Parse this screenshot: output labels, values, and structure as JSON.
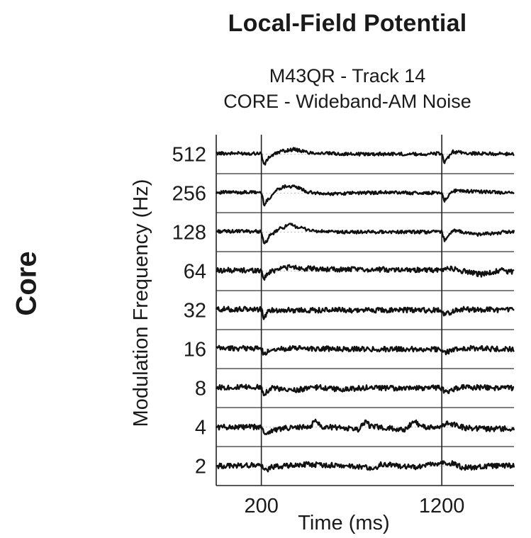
{
  "figure": {
    "title": "Local-Field Potential",
    "subtitle_line1": "M43QR - Track 14",
    "subtitle_line2": "CORE - Wideband-AM Noise",
    "side_label": "Core"
  },
  "chart_data": {
    "type": "line",
    "title": "Local-Field Potential",
    "subtitle": [
      "M43QR - Track 14",
      "CORE - Wideband-AM Noise"
    ],
    "xlabel": "Time (ms)",
    "ylabel": "Modulation Frequency (Hz)",
    "x_ticks": [
      200,
      1200
    ],
    "xlim": [
      -50,
      1600
    ],
    "stimulus_markers_ms": [
      200,
      1200
    ],
    "categories": [
      "512",
      "256",
      "128",
      "64",
      "32",
      "16",
      "8",
      "4",
      "2"
    ],
    "series": [
      {
        "name": "512",
        "points": [
          [
            -50,
            0.05
          ],
          [
            150,
            0.05
          ],
          [
            200,
            0.05
          ],
          [
            215,
            -0.7
          ],
          [
            240,
            -0.2
          ],
          [
            300,
            0.15
          ],
          [
            380,
            0.3
          ],
          [
            460,
            0.1
          ],
          [
            550,
            0.05
          ],
          [
            700,
            0.0
          ],
          [
            900,
            0.02
          ],
          [
            1100,
            0.0
          ],
          [
            1200,
            0.05
          ],
          [
            1215,
            -0.55
          ],
          [
            1260,
            0.15
          ],
          [
            1350,
            0.05
          ],
          [
            1600,
            0.0
          ]
        ]
      },
      {
        "name": "256",
        "points": [
          [
            -50,
            0.05
          ],
          [
            150,
            0.05
          ],
          [
            200,
            0.05
          ],
          [
            215,
            -0.7
          ],
          [
            240,
            -0.35
          ],
          [
            290,
            0.25
          ],
          [
            340,
            0.45
          ],
          [
            400,
            0.35
          ],
          [
            460,
            0.05
          ],
          [
            550,
            -0.05
          ],
          [
            700,
            0.0
          ],
          [
            900,
            0.05
          ],
          [
            1100,
            0.0
          ],
          [
            1200,
            0.05
          ],
          [
            1215,
            -0.45
          ],
          [
            1260,
            0.15
          ],
          [
            1400,
            0.1
          ],
          [
            1600,
            0.0
          ]
        ]
      },
      {
        "name": "128",
        "points": [
          [
            -50,
            0.05
          ],
          [
            150,
            0.05
          ],
          [
            200,
            0.05
          ],
          [
            215,
            -0.8
          ],
          [
            245,
            -0.25
          ],
          [
            300,
            0.2
          ],
          [
            360,
            0.45
          ],
          [
            420,
            0.25
          ],
          [
            500,
            0.05
          ],
          [
            650,
            0.0
          ],
          [
            900,
            0.02
          ],
          [
            1100,
            0.0
          ],
          [
            1200,
            0.05
          ],
          [
            1215,
            -0.5
          ],
          [
            1260,
            0.1
          ],
          [
            1400,
            -0.15
          ],
          [
            1600,
            0.05
          ]
        ]
      },
      {
        "name": "64",
        "points": [
          [
            -50,
            0.05
          ],
          [
            150,
            0.05
          ],
          [
            200,
            0.05
          ],
          [
            215,
            -0.45
          ],
          [
            240,
            -0.1
          ],
          [
            300,
            0.2
          ],
          [
            360,
            0.25
          ],
          [
            450,
            0.15
          ],
          [
            600,
            0.1
          ],
          [
            800,
            0.1
          ],
          [
            1000,
            0.1
          ],
          [
            1150,
            0.05
          ],
          [
            1200,
            0.05
          ],
          [
            1230,
            0.2
          ],
          [
            1320,
            0.0
          ],
          [
            1420,
            -0.2
          ],
          [
            1520,
            0.05
          ],
          [
            1600,
            -0.05
          ]
        ]
      },
      {
        "name": "32",
        "points": [
          [
            -50,
            0.05
          ],
          [
            150,
            0.05
          ],
          [
            200,
            0.05
          ],
          [
            215,
            -0.5
          ],
          [
            245,
            0.0
          ],
          [
            400,
            0.0
          ],
          [
            700,
            0.0
          ],
          [
            1000,
            0.0
          ],
          [
            1200,
            0.0
          ],
          [
            1215,
            -0.25
          ],
          [
            1300,
            0.05
          ],
          [
            1600,
            0.0
          ]
        ]
      },
      {
        "name": "16",
        "points": [
          [
            -50,
            0.05
          ],
          [
            150,
            0.05
          ],
          [
            200,
            0.05
          ],
          [
            215,
            -0.4
          ],
          [
            250,
            0.0
          ],
          [
            400,
            0.05
          ],
          [
            700,
            0.0
          ],
          [
            1000,
            0.0
          ],
          [
            1200,
            0.0
          ],
          [
            1215,
            -0.2
          ],
          [
            1300,
            0.05
          ],
          [
            1600,
            0.0
          ]
        ]
      },
      {
        "name": "8",
        "points": [
          [
            -50,
            0.05
          ],
          [
            150,
            0.05
          ],
          [
            200,
            0.05
          ],
          [
            215,
            -0.35
          ],
          [
            260,
            0.05
          ],
          [
            330,
            -0.15
          ],
          [
            400,
            -0.1
          ],
          [
            520,
            0.05
          ],
          [
            650,
            -0.1
          ],
          [
            800,
            0.05
          ],
          [
            1000,
            -0.05
          ],
          [
            1150,
            0.05
          ],
          [
            1200,
            0.0
          ],
          [
            1215,
            -0.25
          ],
          [
            1300,
            0.05
          ],
          [
            1600,
            0.0
          ]
        ]
      },
      {
        "name": "4",
        "points": [
          [
            -50,
            0.0
          ],
          [
            150,
            0.0
          ],
          [
            200,
            0.0
          ],
          [
            215,
            -0.4
          ],
          [
            280,
            -0.15
          ],
          [
            350,
            -0.05
          ],
          [
            470,
            0.0
          ],
          [
            500,
            0.45
          ],
          [
            530,
            0.05
          ],
          [
            650,
            -0.05
          ],
          [
            740,
            -0.15
          ],
          [
            780,
            0.4
          ],
          [
            800,
            0.05
          ],
          [
            930,
            -0.1
          ],
          [
            1000,
            -0.15
          ],
          [
            1050,
            0.4
          ],
          [
            1080,
            0.05
          ],
          [
            1150,
            -0.05
          ],
          [
            1200,
            0.05
          ],
          [
            1240,
            0.25
          ],
          [
            1330,
            -0.05
          ],
          [
            1450,
            -0.1
          ],
          [
            1600,
            -0.1
          ]
        ]
      },
      {
        "name": "2",
        "points": [
          [
            -50,
            0.0
          ],
          [
            150,
            0.05
          ],
          [
            200,
            0.05
          ],
          [
            215,
            -0.3
          ],
          [
            260,
            -0.05
          ],
          [
            450,
            0.1
          ],
          [
            600,
            0.05
          ],
          [
            760,
            -0.05
          ],
          [
            840,
            -0.15
          ],
          [
            850,
            0.1
          ],
          [
            900,
            0.1
          ],
          [
            1050,
            -0.1
          ],
          [
            1150,
            0.1
          ],
          [
            1200,
            0.2
          ],
          [
            1260,
            0.15
          ],
          [
            1320,
            -0.1
          ],
          [
            1450,
            0.0
          ],
          [
            1600,
            0.05
          ]
        ]
      }
    ]
  }
}
